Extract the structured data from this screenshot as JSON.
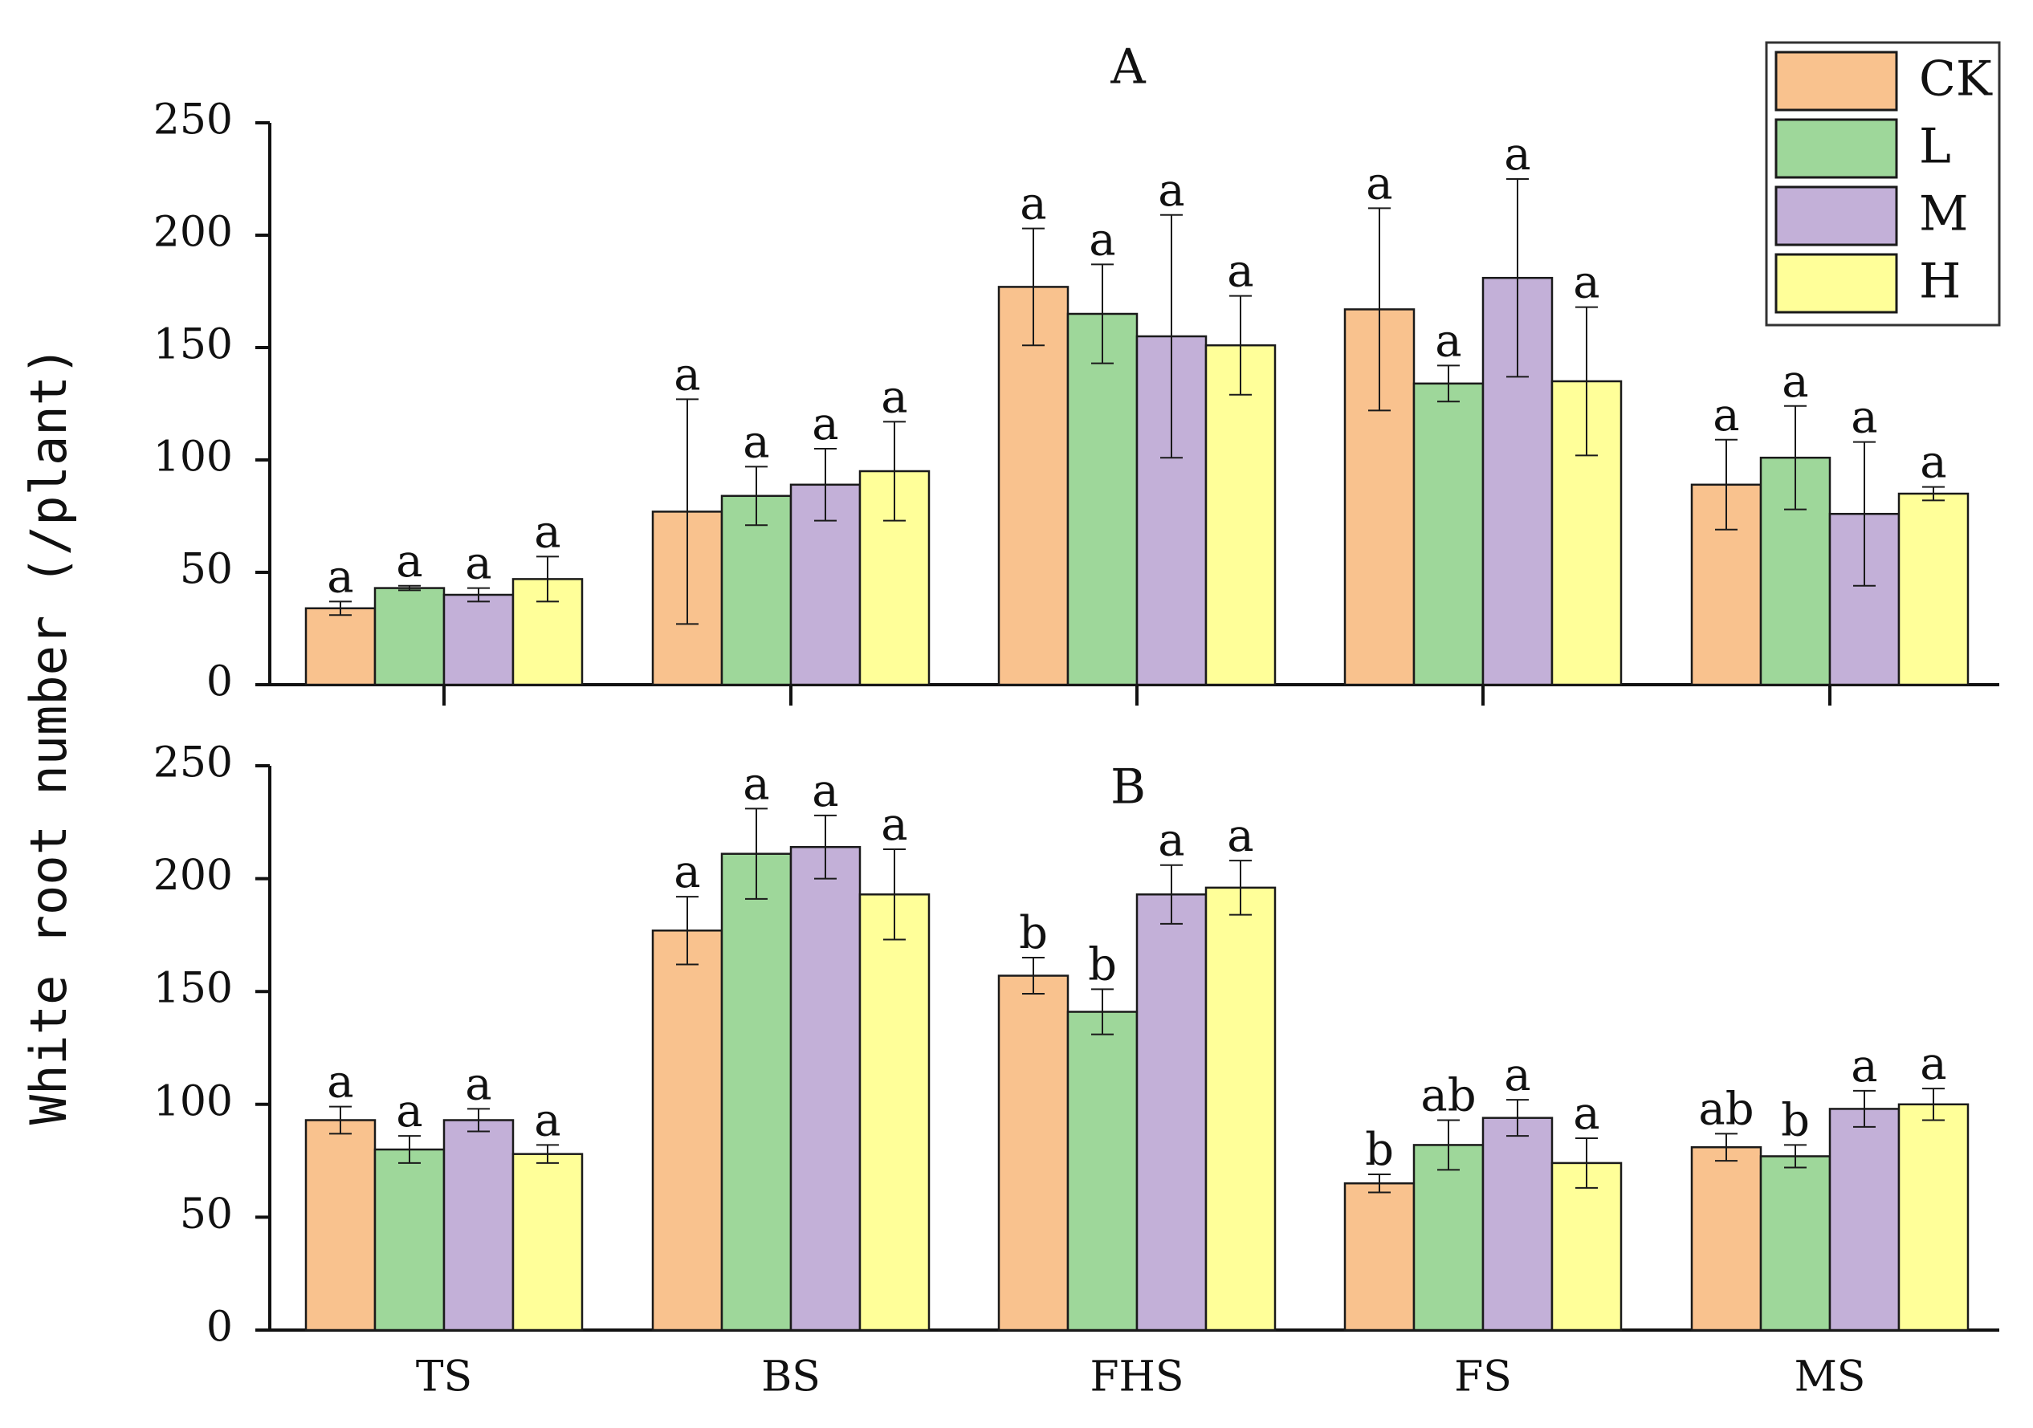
{
  "chart_data": [
    {
      "type": "bar",
      "panel_label": "A",
      "ylabel": "White root number (/plant)",
      "ylim": [
        0,
        250
      ],
      "yticks": [
        "0",
        "50",
        "100",
        "150",
        "200",
        "250"
      ],
      "categories": [
        "TS",
        "BS",
        "FHS",
        "FS",
        "MS"
      ],
      "series": [
        {
          "name": "CK",
          "values": [
            34,
            77,
            177,
            167,
            89
          ],
          "errors": [
            3,
            50,
            26,
            45,
            20
          ],
          "sig": [
            "a",
            "a",
            "a",
            "a",
            "a"
          ]
        },
        {
          "name": "L",
          "values": [
            43,
            84,
            165,
            134,
            101
          ],
          "errors": [
            1,
            13,
            22,
            8,
            23
          ],
          "sig": [
            "a",
            "a",
            "a",
            "a",
            "a"
          ]
        },
        {
          "name": "M",
          "values": [
            40,
            89,
            155,
            181,
            76
          ],
          "errors": [
            3,
            16,
            54,
            44,
            32
          ],
          "sig": [
            "a",
            "a",
            "a",
            "a",
            "a"
          ]
        },
        {
          "name": "H",
          "values": [
            47,
            95,
            151,
            135,
            85
          ],
          "errors": [
            10,
            22,
            22,
            33,
            3
          ],
          "sig": [
            "a",
            "a",
            "a",
            "a",
            "a"
          ]
        }
      ]
    },
    {
      "type": "bar",
      "panel_label": "B",
      "ylabel": "White root number (/plant)",
      "ylim": [
        0,
        250
      ],
      "yticks": [
        "0",
        "50",
        "100",
        "150",
        "200",
        "250"
      ],
      "categories": [
        "TS",
        "BS",
        "FHS",
        "FS",
        "MS"
      ],
      "series": [
        {
          "name": "CK",
          "values": [
            93,
            177,
            157,
            65,
            81
          ],
          "errors": [
            6,
            15,
            8,
            4,
            6
          ],
          "sig": [
            "a",
            "a",
            "b",
            "b",
            "ab"
          ]
        },
        {
          "name": "L",
          "values": [
            80,
            211,
            141,
            82,
            77
          ],
          "errors": [
            6,
            20,
            10,
            11,
            5
          ],
          "sig": [
            "a",
            "a",
            "b",
            "ab",
            "b"
          ]
        },
        {
          "name": "M",
          "values": [
            93,
            214,
            193,
            94,
            98
          ],
          "errors": [
            5,
            14,
            13,
            8,
            8
          ],
          "sig": [
            "a",
            "a",
            "a",
            "a",
            "a"
          ]
        },
        {
          "name": "H",
          "values": [
            78,
            193,
            196,
            74,
            100
          ],
          "errors": [
            4,
            20,
            12,
            11,
            7
          ],
          "sig": [
            "a",
            "a",
            "a",
            "a",
            "a"
          ]
        }
      ]
    }
  ],
  "legend": {
    "placement": "top-right",
    "entries": [
      "CK",
      "L",
      "M",
      "H"
    ]
  },
  "colors": {
    "CK": "#f9c28e",
    "L": "#9ed79a",
    "M": "#c3b0d8",
    "H": "#ffff99",
    "axis": "#111111"
  }
}
